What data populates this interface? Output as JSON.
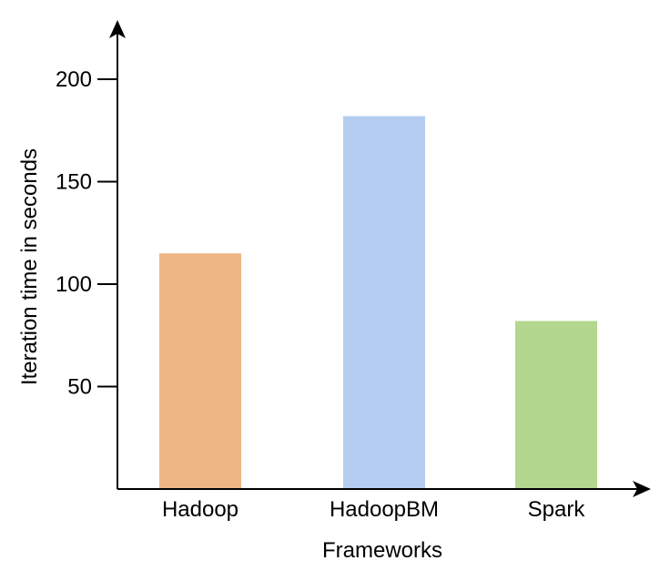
{
  "chart_data": {
    "type": "bar",
    "categories": [
      "Hadoop",
      "HadoopBM",
      "Spark"
    ],
    "values": [
      115,
      182,
      82
    ],
    "colors": [
      "#efb685",
      "#b4cdf1",
      "#b3d78e"
    ],
    "xlabel": "Frameworks",
    "ylabel": "Iteration time in seconds",
    "yticks": [
      50,
      100,
      150,
      200
    ],
    "ylim": [
      0,
      220
    ],
    "grid": false,
    "legend": "none"
  }
}
